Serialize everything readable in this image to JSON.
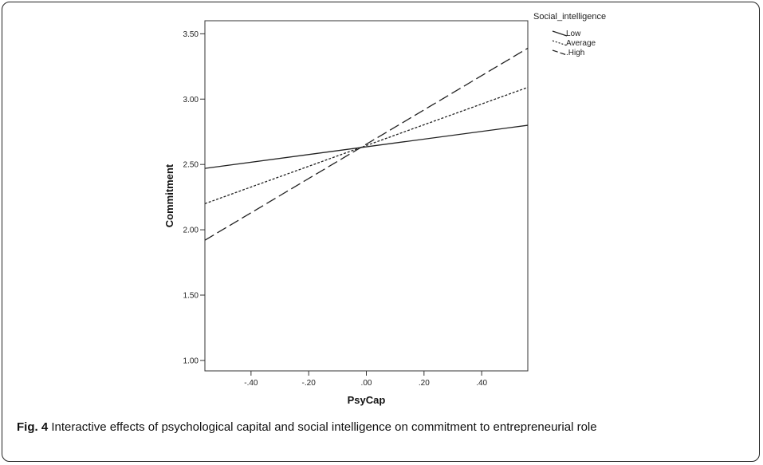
{
  "chart_data": {
    "type": "line",
    "xlabel": "PsyCap",
    "ylabel": "Commitment",
    "xlim": [
      -0.56,
      0.56
    ],
    "ylim": [
      0.92,
      3.6
    ],
    "xticks": [
      -0.4,
      -0.2,
      0.0,
      0.2,
      0.4
    ],
    "xtick_labels": [
      "-.40",
      "-.20",
      ".00",
      ".20",
      ".40"
    ],
    "yticks": [
      1.0,
      1.5,
      2.0,
      2.5,
      3.0,
      3.5
    ],
    "ytick_labels": [
      "1.00",
      "1.50",
      "2.00",
      "2.50",
      "3.00",
      "3.50"
    ],
    "legend_title": "Social_intelligence",
    "legend_position": "outside-top-right",
    "grid": false,
    "series": [
      {
        "name": "Low",
        "x": [
          -0.56,
          0.56
        ],
        "y": [
          2.47,
          2.8
        ],
        "dash": "solid"
      },
      {
        "name": "Average",
        "x": [
          -0.56,
          0.56
        ],
        "y": [
          2.2,
          3.09
        ],
        "dash": "dotted"
      },
      {
        "name": ".High",
        "x": [
          -0.56,
          0.56
        ],
        "y": [
          1.92,
          3.39
        ],
        "dash": "dashed"
      }
    ]
  },
  "caption": {
    "label": "Fig. 4",
    "text": " Interactive effects of psychological capital and social intelligence on commitment to entrepreneurial role"
  }
}
